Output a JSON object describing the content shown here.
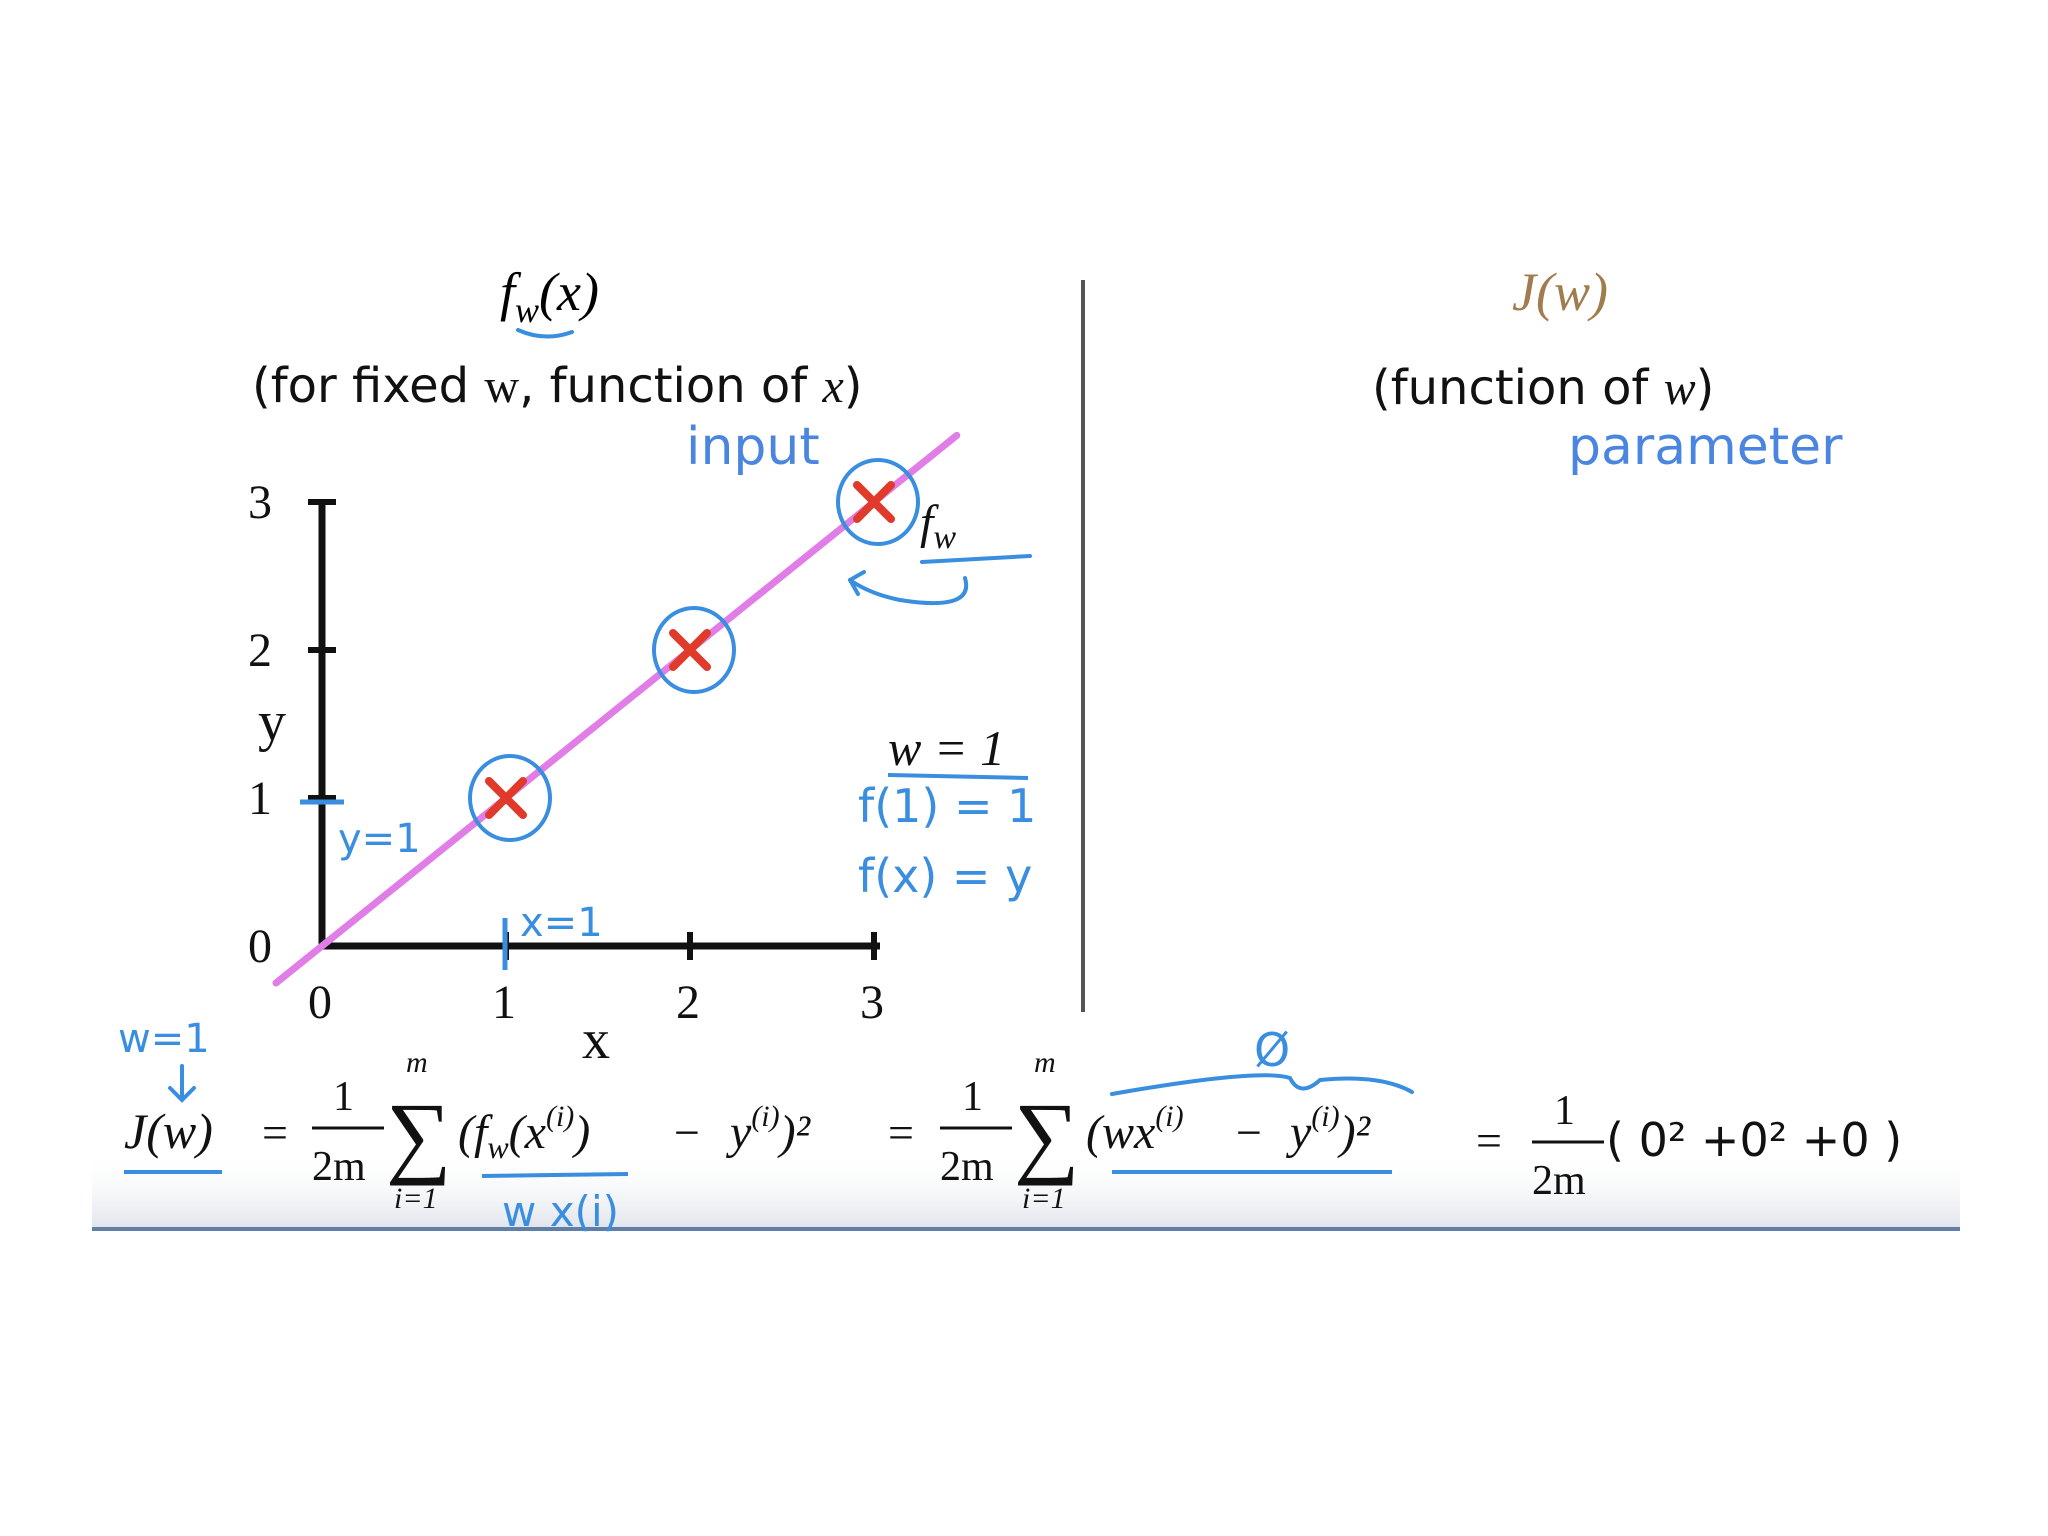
{
  "left_panel": {
    "title_f": "f",
    "title_sub": "w",
    "title_arg": "(x)",
    "subtitle_pre": "(for fixed ",
    "subtitle_w": "w",
    "subtitle_mid": ", function of ",
    "subtitle_x": "x",
    "subtitle_post": ")",
    "input_note": "input",
    "fw_label_f": "f",
    "fw_label_sub": "w",
    "w_eq": "w = 1",
    "note_f1": "f(1) = 1",
    "note_fx": "f(x) = y",
    "note_y1": "y=1",
    "note_x1": "x=1"
  },
  "right_panel": {
    "title": "J(w)",
    "subtitle_pre": "(function of ",
    "subtitle_w": "w",
    "subtitle_post": ")",
    "param_note": "parameter",
    "title_color": "#a07c4f"
  },
  "formula": {
    "w_note": "w=1",
    "lhs": "J(w)",
    "eq1": "=",
    "frac_num": "1",
    "frac_den": "2m",
    "sum_top": "m",
    "sum_bot": "i=1",
    "term1": "(f",
    "term1_sub": "w",
    "term1_b": "(x",
    "sup_i": "(i)",
    "term1_c": ")",
    "minus": "−",
    "y": "y",
    "sq": ")²",
    "under_note": "w x(i)",
    "eq2": "=",
    "term2": "(wx",
    "zero_note": "Ø",
    "eq3": "=",
    "tail": "( 0² +0² +0    )"
  },
  "chart_data": {
    "type": "scatter",
    "xlabel": "x",
    "ylabel": "y",
    "xlim": [
      0,
      3
    ],
    "ylim": [
      0,
      3
    ],
    "xticks": [
      "0",
      "1",
      "2",
      "3"
    ],
    "yticks": [
      "0",
      "1",
      "2",
      "3"
    ],
    "points": [
      {
        "x": 1,
        "y": 1
      },
      {
        "x": 2,
        "y": 2
      },
      {
        "x": 3,
        "y": 3
      }
    ],
    "fit_line": {
      "slope": 1,
      "intercept": 0,
      "color": "#e07de6"
    },
    "marker_color": "#e03a2a",
    "annotation_color": "#3a8ee0",
    "grid": false
  }
}
